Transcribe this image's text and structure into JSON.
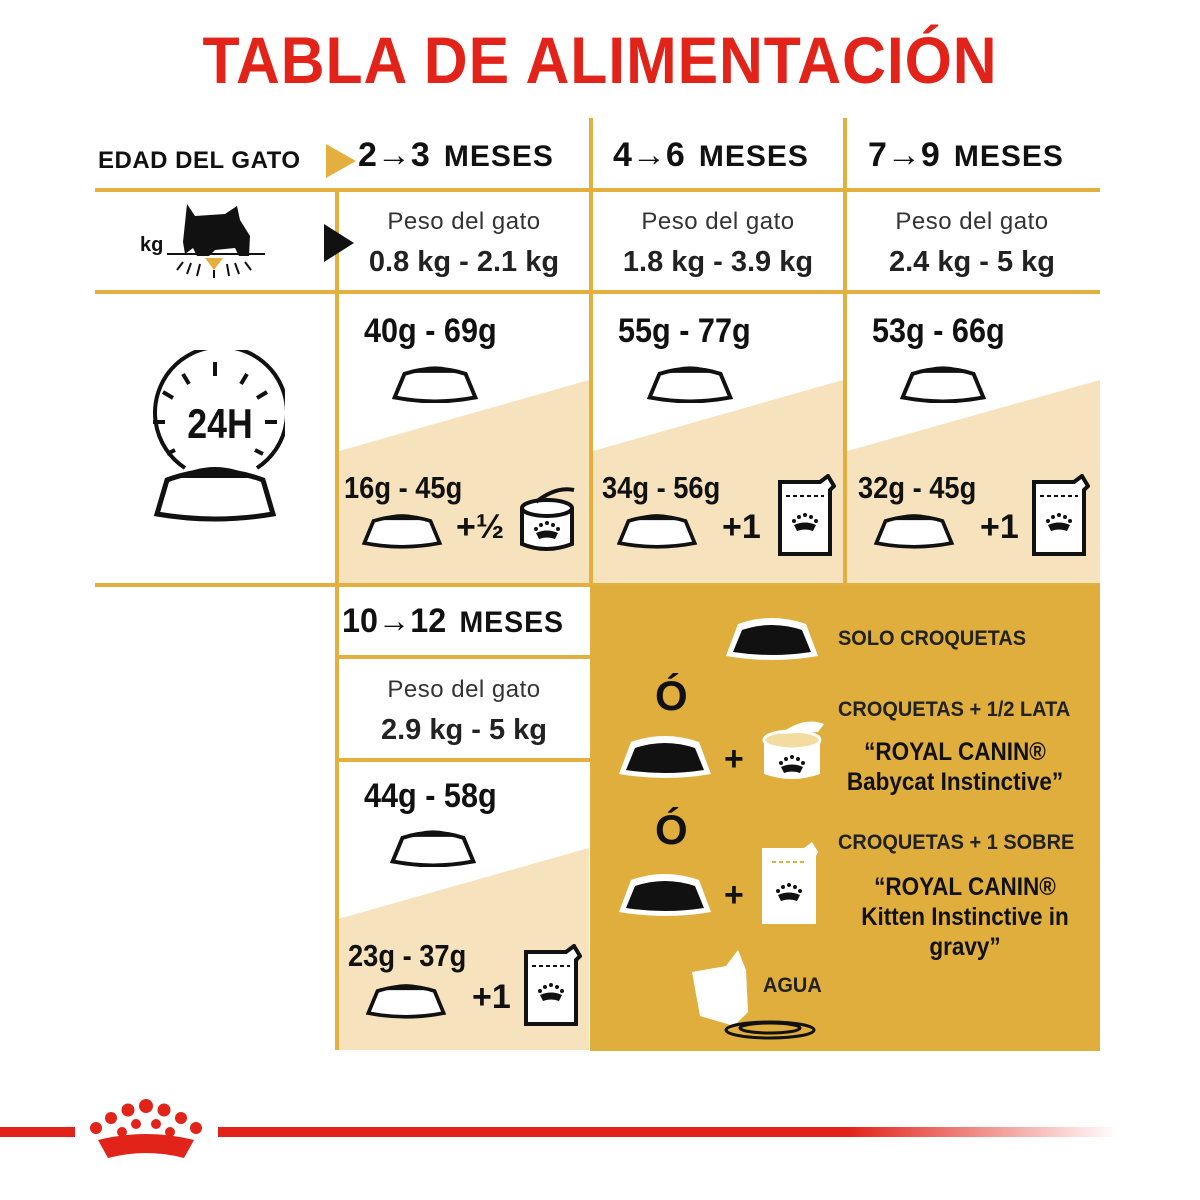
{
  "title": "TABLA DE ALIMENTACIÓN",
  "row_label": "EDAD DEL GATO",
  "kg_label": "kg",
  "clock_label": "24H",
  "unit": "MESES",
  "columns": [
    {
      "range": "2→3",
      "weight_label": "Peso del gato",
      "weight": "0.8 kg - 2.1 kg",
      "dry": "40g - 69g",
      "mixed": "16g - 45g",
      "extra": "+½",
      "wet_type": "can"
    },
    {
      "range": "4→6",
      "weight_label": "Peso del gato",
      "weight": "1.8 kg - 3.9 kg",
      "dry": "55g - 77g",
      "mixed": "34g - 56g",
      "extra": "+1",
      "wet_type": "pouch"
    },
    {
      "range": "7→9",
      "weight_label": "Peso del gato",
      "weight": "2.4 kg - 5 kg",
      "dry": "53g - 66g",
      "mixed": "32g - 45g",
      "extra": "+1",
      "wet_type": "pouch"
    },
    {
      "range": "10→12",
      "weight_label": "Peso del gato",
      "weight": "2.9 kg - 5 kg",
      "dry": "44g - 58g",
      "mixed": "23g - 37g",
      "extra": "+1",
      "wet_type": "pouch"
    }
  ],
  "legend": {
    "solo": "SOLO CROQUETAS",
    "or": "Ó",
    "plus": "+",
    "opt2_title": "CROQUETAS + 1/2 LATA",
    "opt2_product": "“ROYAL CANIN® Babycat Instinctive”",
    "opt3_title": "CROQUETAS + 1 SOBRE",
    "opt3_product": "“ROYAL CANIN® Kitten Instinctive in gravy”",
    "water": "AGUA"
  },
  "colors": {
    "brand_red": "#e2231a",
    "gold": "#e3b040",
    "beige": "#f6e3bd",
    "panel": "#e0ae3c"
  }
}
